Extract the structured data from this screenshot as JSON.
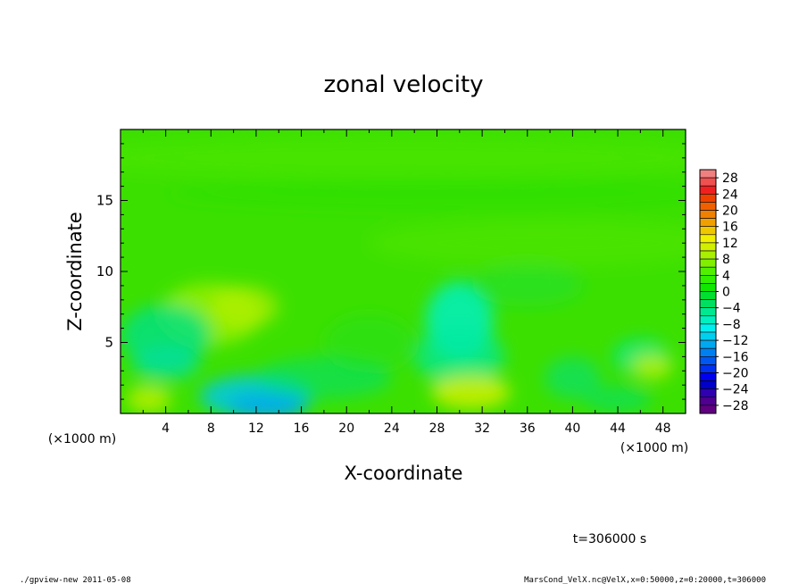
{
  "chart_data": {
    "type": "heatmap",
    "title": "zonal velocity",
    "xlabel": "X-coordinate",
    "ylabel": "Z-coordinate",
    "x_unit": "(×1000 m)",
    "x_unit_left": "(×1000 m)",
    "x_range": [
      0,
      50
    ],
    "y_range": [
      0,
      20
    ],
    "x_ticks": [
      4,
      8,
      12,
      16,
      20,
      24,
      28,
      32,
      36,
      40,
      44,
      48
    ],
    "y_ticks": [
      5,
      10,
      15
    ],
    "colorbar": {
      "tick_labels": [
        "28",
        "24",
        "20",
        "16",
        "12",
        "8",
        "4",
        "0",
        "−4",
        "−8",
        "−12",
        "−16",
        "−20",
        "−24",
        "−28"
      ],
      "levels": [
        30,
        28,
        26,
        24,
        22,
        20,
        18,
        16,
        14,
        12,
        10,
        8,
        6,
        4,
        2,
        0,
        -2,
        -4,
        -6,
        -8,
        -10,
        -12,
        -14,
        -16,
        -18,
        -20,
        -22,
        -24,
        -26,
        -28,
        -30
      ],
      "colors": [
        "#f08080",
        "#f05050",
        "#f02020",
        "#f04000",
        "#f06000",
        "#f08000",
        "#f0a000",
        "#f0c800",
        "#f0f000",
        "#d0f000",
        "#a8f000",
        "#80f000",
        "#50f000",
        "#30f000",
        "#10e800",
        "#00e030",
        "#00e060",
        "#00e890",
        "#00f0c0",
        "#00f0f0",
        "#00d0f0",
        "#00a8f0",
        "#0080f0",
        "#0058f0",
        "#0030f0",
        "#0000f0",
        "#0000c8",
        "#3000b0",
        "#500090",
        "#600080"
      ]
    },
    "grid": false,
    "legend_placement": "right (colorbar)",
    "field_description": "zonal velocity in m/s; mostly weakly positive (green), with negative patches near bottom around x=12 km and x=30 km, positive patches near x=8-12 km at z~6-8 km and x=30-34 km near surface"
  },
  "time_label": "t=306000 s",
  "footer_left": "./gpview-new  2011-05-08",
  "footer_right": "MarsCond_VelX.nc@VelX,x=0:50000,z=0:20000,t=306000",
  "colors": {
    "background": "#ffffff",
    "axis": "#000000"
  }
}
